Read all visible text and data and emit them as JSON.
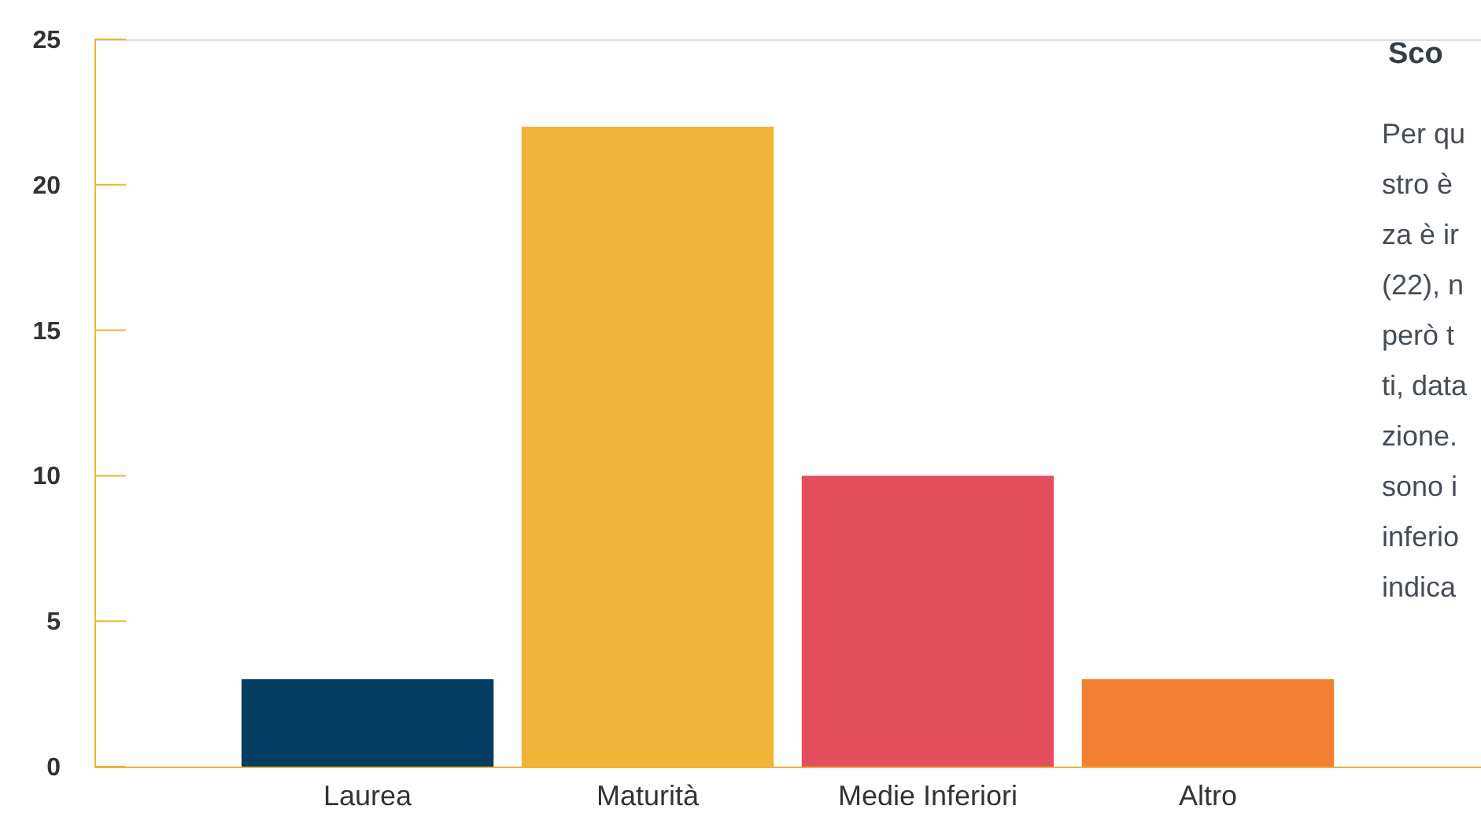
{
  "chart_data": {
    "type": "bar",
    "categories": [
      "Laurea",
      "Maturità",
      "Medie Inferiori",
      "Altro"
    ],
    "values": [
      3,
      22,
      10,
      3
    ],
    "colors": [
      "#033d61",
      "#f1b338",
      "#e54f5d",
      "#f38030"
    ],
    "ylim": [
      0,
      25
    ],
    "yticks": [
      0,
      5,
      10,
      15,
      20,
      25
    ],
    "annotations": [
      "Sco",
      "Per qu",
      "stro è",
      "za è ir",
      "(22), n",
      "però t",
      "ti, data",
      "zione.",
      "sono i",
      "inferio",
      "indica"
    ]
  }
}
